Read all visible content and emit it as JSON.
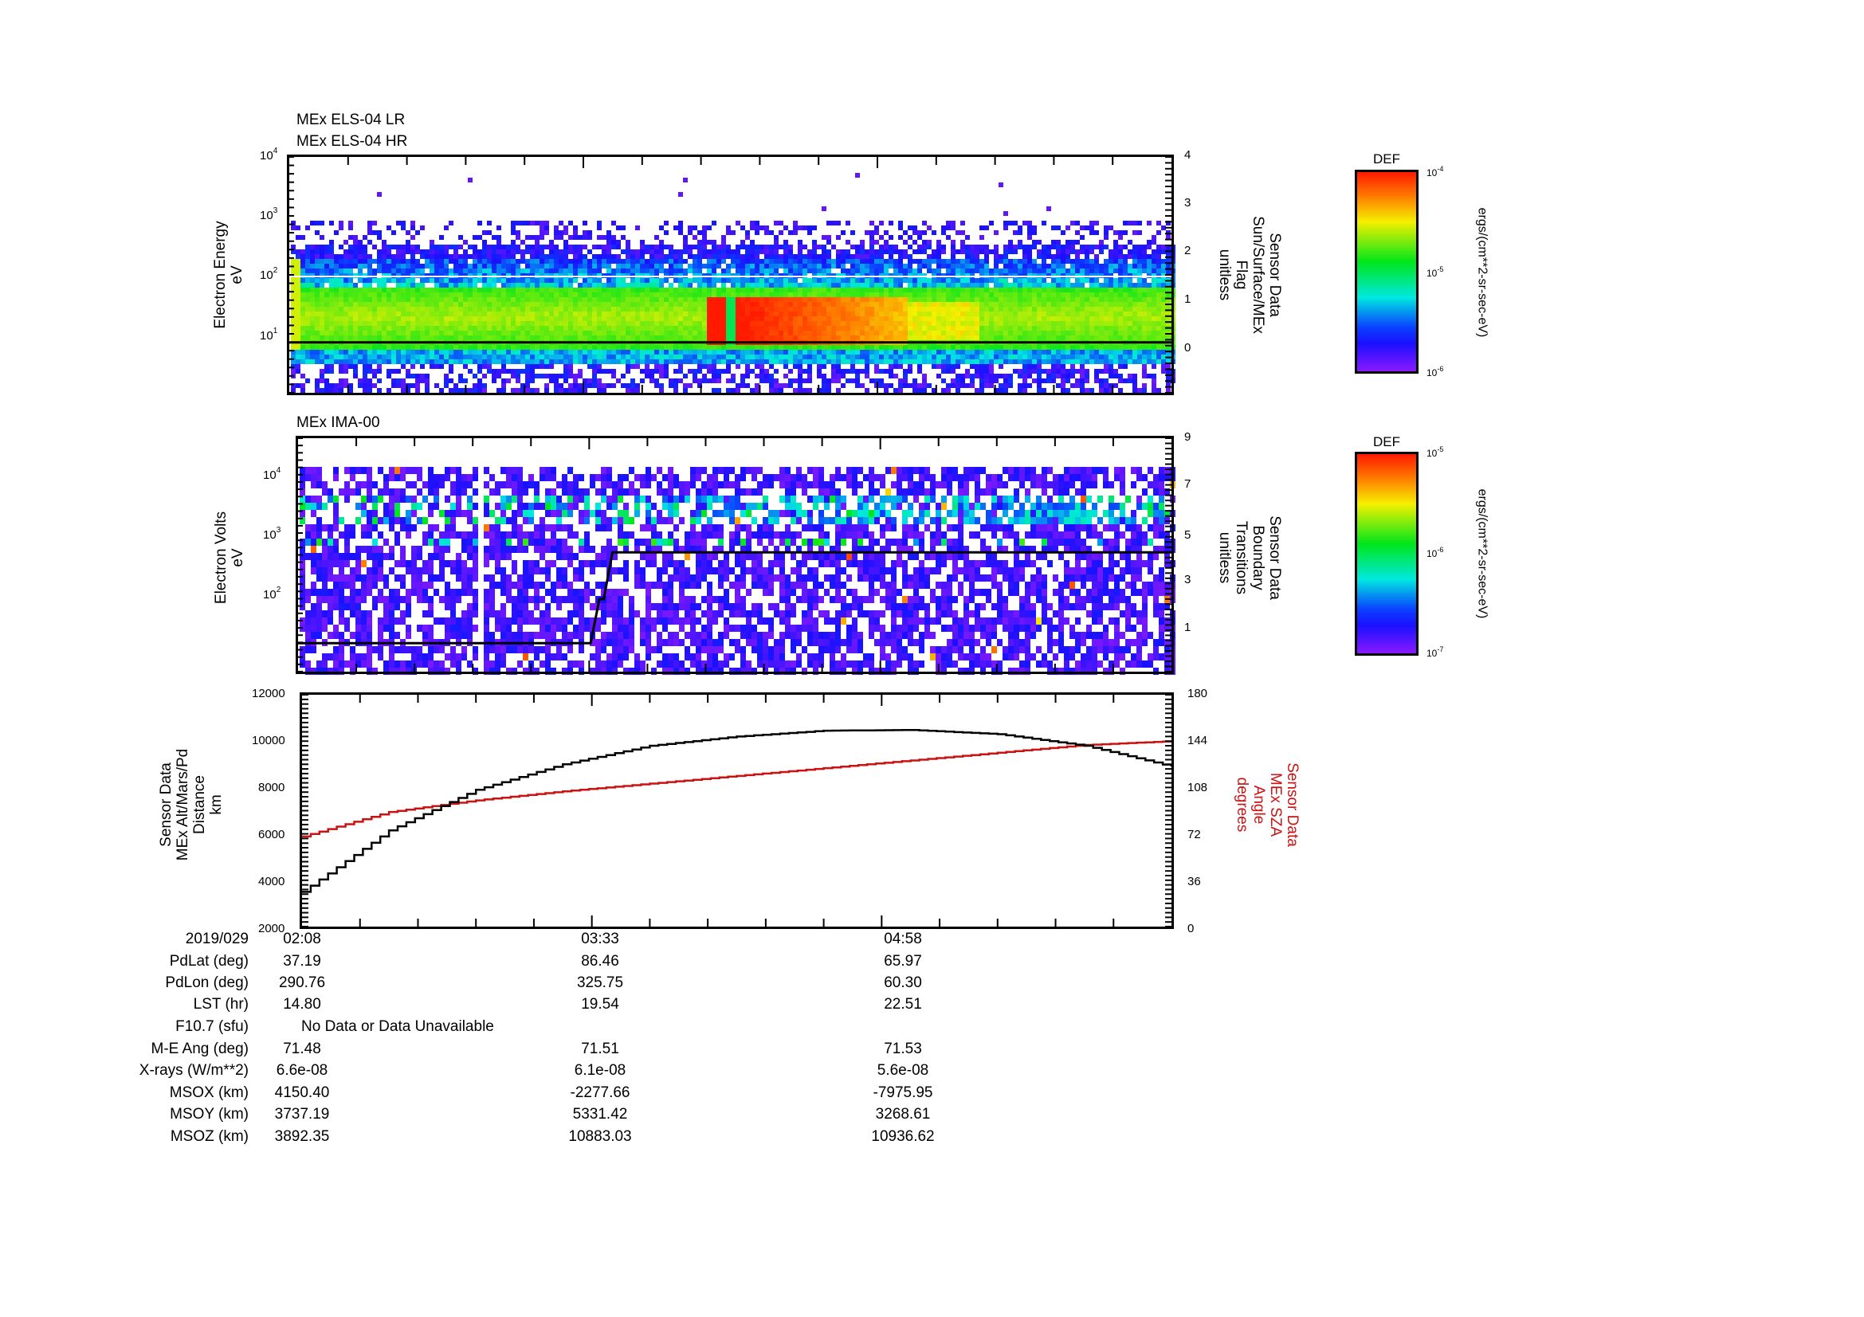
{
  "panels": [
    {
      "id": "els",
      "titles": [
        "MEx ELS-04 LR",
        "MEx ELS-04 HR"
      ],
      "left_axis_label": [
        "Electron Energy",
        "eV"
      ],
      "left_ticks": [
        {
          "base": "10",
          "exp": "4"
        },
        {
          "base": "10",
          "exp": "3"
        },
        {
          "base": "10",
          "exp": "2"
        },
        {
          "base": "10",
          "exp": "1"
        }
      ],
      "right_axis_label": [
        "Sensor Data",
        "Sun/Surface/MEx",
        "Flag",
        "unitless"
      ],
      "right_ticks": [
        "4",
        "3",
        "2",
        "1",
        "0"
      ],
      "colorbar": {
        "title": "DEF",
        "top": {
          "base": "10",
          "exp": "-4"
        },
        "mid": {
          "base": "10",
          "exp": "-5"
        },
        "bottom": {
          "base": "10",
          "exp": "-6"
        },
        "unit": "ergs/(cm**2-sr-sec-eV)"
      }
    },
    {
      "id": "ima",
      "titles": [
        "MEx IMA-00"
      ],
      "left_axis_label": [
        "Electron Volts",
        "eV"
      ],
      "left_ticks": [
        {
          "base": "10",
          "exp": "4"
        },
        {
          "base": "10",
          "exp": "3"
        },
        {
          "base": "10",
          "exp": "2"
        }
      ],
      "right_axis_label": [
        "Sensor Data",
        "Boundary",
        "Transitions",
        "unitless"
      ],
      "right_ticks": [
        "9",
        "7",
        "5",
        "3",
        "1"
      ],
      "colorbar": {
        "title": "DEF",
        "top": {
          "base": "10",
          "exp": "-5"
        },
        "mid": {
          "base": "10",
          "exp": "-6"
        },
        "bottom": {
          "base": "10",
          "exp": "-7"
        },
        "unit": "ergs/(cm**2-sr-sec-eV)"
      }
    },
    {
      "id": "orbit",
      "left_axis_label": [
        "Sensor Data",
        "MEx Alt/Mars/Pd",
        "Distance",
        "km"
      ],
      "left_ticks": [
        "12000",
        "10000",
        "8000",
        "6000",
        "4000",
        "2000"
      ],
      "right_axis_label": [
        "Sensor Data",
        "MEx SZA",
        "Angle",
        "degrees"
      ],
      "right_ticks": [
        "180",
        "144",
        "108",
        "72",
        "36",
        "0"
      ],
      "right_label_color": "#cc1111"
    }
  ],
  "info_table": {
    "labels": [
      "2019/029",
      "PdLat (deg)",
      "PdLon (deg)",
      "LST (hr)",
      "F10.7 (sfu)",
      "M-E Ang (deg)",
      "X-rays (W/m**2)",
      "MSOX (km)",
      "MSOY (km)",
      "MSOZ (km)"
    ],
    "columns": [
      [
        "02:08",
        "37.19",
        "290.76",
        "14.80",
        "",
        "71.48",
        "6.6e-08",
        "4150.40",
        "3737.19",
        "3892.35"
      ],
      [
        "03:33",
        "86.46",
        "325.75",
        "19.54",
        "",
        "71.51",
        "6.1e-08",
        "-2277.66",
        "5331.42",
        "10883.03"
      ],
      [
        "04:58",
        "65.97",
        "60.30",
        "22.51",
        "",
        "71.53",
        "5.6e-08",
        "-7975.95",
        "3268.61",
        "10936.62"
      ]
    ],
    "f107_note": "No Data or Data Unavailable"
  },
  "chart_data": [
    {
      "type": "heatmap",
      "title": "MEx ELS-04 LR / MEx ELS-04 HR",
      "xlabel": "Time (2019/029)",
      "ylabel": "Electron Energy (eV)",
      "yscale": "log",
      "ylim": [
        2,
        10000
      ],
      "x_ticks": [
        "02:08",
        "03:33",
        "04:58"
      ],
      "colorbar": {
        "label": "DEF ergs/(cm**2-sr-sec-eV)",
        "range": [
          1e-06,
          0.0001
        ]
      },
      "features": [
        {
          "description": "Broad green band 5-100 eV across whole interval",
          "energy_eV": [
            6,
            60
          ],
          "level": "~1e-5"
        },
        {
          "description": "Intense red enhancement starting ~03:50, decaying toward ~05:00",
          "energy_eV": [
            8,
            40
          ],
          "level": "~1e-4"
        }
      ],
      "overlay_right_axis": {
        "label": "Sensor Data Sun/Surface/MEx Flag (unitless)",
        "ylim": [
          -1,
          4
        ],
        "lines": [
          {
            "y": 0,
            "color": "#000000"
          },
          {
            "y": 1.5,
            "color": "#ffffff"
          }
        ]
      }
    },
    {
      "type": "heatmap",
      "title": "MEx IMA-00",
      "xlabel": "Time (2019/029)",
      "ylabel": "Electron Volts (eV)",
      "yscale": "log",
      "ylim": [
        10,
        30000
      ],
      "x_ticks": [
        "02:08",
        "03:33",
        "04:58"
      ],
      "colorbar": {
        "label": "DEF ergs/(cm**2-sr-sec-eV)",
        "range": [
          1e-07,
          1e-05
        ]
      },
      "features": [
        {
          "description": "Ion bands near 500-3000 eV, cyan/green, intermittent"
        },
        {
          "description": "Data gap near 02:45"
        }
      ],
      "overlay_right_axis": {
        "label": "Sensor Data Boundary Transitions (unitless)",
        "ylim": [
          0,
          9
        ],
        "boundary_line": {
          "x": [
            "02:08",
            "03:48",
            "03:52",
            "03:55",
            "06:18"
          ],
          "y": [
            1.1,
            1.1,
            2.8,
            4.6,
            4.6
          ]
        }
      }
    },
    {
      "type": "line",
      "xlabel": "Time (2019/029)",
      "x": [
        "02:08",
        "02:33",
        "02:58",
        "03:23",
        "03:48",
        "04:13",
        "04:38",
        "05:03",
        "05:28",
        "05:53",
        "06:18"
      ],
      "x_ticks": [
        "02:08",
        "03:33",
        "04:58"
      ],
      "series": [
        {
          "name": "MEx Alt/Mars/Pd Distance (km)",
          "axis": "left",
          "color": "#000000",
          "values": [
            3500,
            6150,
            7900,
            9000,
            9800,
            10200,
            10450,
            10480,
            10300,
            9800,
            8900
          ]
        },
        {
          "name": "MEx SZA Angle (degrees)",
          "axis": "right",
          "color": "#cc1111",
          "values": [
            70,
            89,
            98,
            105,
            111,
            117,
            123,
            129,
            135,
            141,
            144
          ]
        }
      ],
      "ylim_left": [
        2000,
        12000
      ],
      "ylim_right": [
        0,
        180
      ]
    }
  ]
}
